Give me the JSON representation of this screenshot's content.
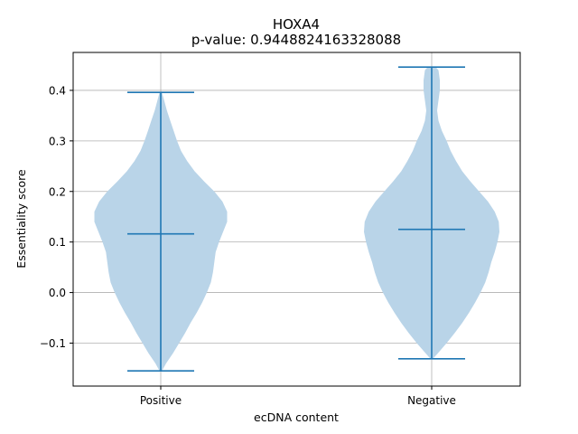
{
  "chart_data": {
    "type": "violin",
    "title": "HOXA4",
    "subtitle": "p-value: 0.9448824163328088",
    "xlabel": "ecDNA content",
    "ylabel": "Essentiality score",
    "categories": [
      "Positive",
      "Negative"
    ],
    "ylim": [
      -0.185,
      0.475
    ],
    "yticks": [
      -0.1,
      0.0,
      0.1,
      0.2,
      0.3,
      0.4
    ],
    "ytick_labels": [
      "−0.1",
      "0.0",
      "0.1",
      "0.2",
      "0.3",
      "0.4"
    ],
    "grid": true,
    "colors": {
      "body": "#b9d4e8",
      "lines": "#1f77b4",
      "grid": "#b0b0b0"
    },
    "violins": [
      {
        "category": "Positive",
        "min": -0.155,
        "median": 0.116,
        "max": 0.396,
        "profile": [
          [
            -0.155,
            0.018
          ],
          [
            -0.14,
            0.08
          ],
          [
            -0.12,
            0.18
          ],
          [
            -0.1,
            0.27
          ],
          [
            -0.08,
            0.36
          ],
          [
            -0.06,
            0.44
          ],
          [
            -0.04,
            0.53
          ],
          [
            -0.02,
            0.61
          ],
          [
            0.0,
            0.68
          ],
          [
            0.02,
            0.74
          ],
          [
            0.04,
            0.77
          ],
          [
            0.06,
            0.79
          ],
          [
            0.08,
            0.81
          ],
          [
            0.1,
            0.86
          ],
          [
            0.12,
            0.92
          ],
          [
            0.14,
            0.98
          ],
          [
            0.16,
            0.98
          ],
          [
            0.18,
            0.91
          ],
          [
            0.2,
            0.79
          ],
          [
            0.22,
            0.64
          ],
          [
            0.24,
            0.5
          ],
          [
            0.26,
            0.39
          ],
          [
            0.28,
            0.3
          ],
          [
            0.3,
            0.24
          ],
          [
            0.32,
            0.19
          ],
          [
            0.34,
            0.14
          ],
          [
            0.36,
            0.09
          ],
          [
            0.38,
            0.05
          ],
          [
            0.396,
            0.018
          ]
        ]
      },
      {
        "category": "Negative",
        "min": -0.131,
        "median": 0.125,
        "max": 0.446,
        "profile": [
          [
            -0.131,
            0.018
          ],
          [
            -0.12,
            0.09
          ],
          [
            -0.1,
            0.22
          ],
          [
            -0.08,
            0.34
          ],
          [
            -0.06,
            0.45
          ],
          [
            -0.04,
            0.55
          ],
          [
            -0.02,
            0.64
          ],
          [
            0.0,
            0.72
          ],
          [
            0.02,
            0.79
          ],
          [
            0.04,
            0.84
          ],
          [
            0.06,
            0.88
          ],
          [
            0.08,
            0.93
          ],
          [
            0.1,
            0.97
          ],
          [
            0.12,
            1.0
          ],
          [
            0.14,
            0.99
          ],
          [
            0.16,
            0.93
          ],
          [
            0.18,
            0.83
          ],
          [
            0.2,
            0.7
          ],
          [
            0.22,
            0.57
          ],
          [
            0.24,
            0.45
          ],
          [
            0.26,
            0.36
          ],
          [
            0.28,
            0.28
          ],
          [
            0.3,
            0.22
          ],
          [
            0.32,
            0.15
          ],
          [
            0.34,
            0.1
          ],
          [
            0.36,
            0.08
          ],
          [
            0.38,
            0.1
          ],
          [
            0.4,
            0.12
          ],
          [
            0.42,
            0.12
          ],
          [
            0.44,
            0.1
          ],
          [
            0.446,
            0.06
          ]
        ]
      }
    ]
  }
}
